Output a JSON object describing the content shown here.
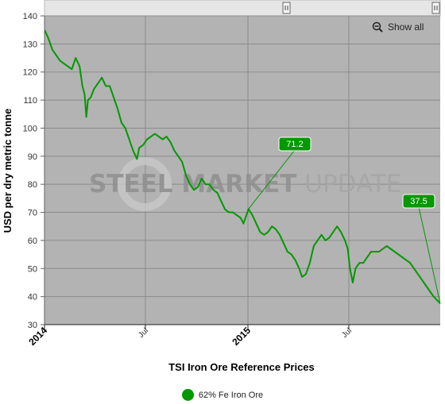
{
  "chart_data": {
    "type": "line",
    "title": "",
    "xlabel": "TSI Iron Ore Reference Prices",
    "ylabel": "USD per dry metric tonne",
    "ylim": [
      30,
      140
    ],
    "yticks": [
      30,
      40,
      50,
      60,
      70,
      80,
      90,
      100,
      110,
      120,
      130,
      140
    ],
    "xlim": [
      "2014-01-01",
      "2015-12-12"
    ],
    "xticks": [
      {
        "date": "2014-01-01",
        "label": "2014",
        "major": true
      },
      {
        "date": "2014-07-01",
        "label": "Jul",
        "major": false
      },
      {
        "date": "2015-01-01",
        "label": "2015",
        "major": true
      },
      {
        "date": "2015-07-01",
        "label": "Jul",
        "major": false
      }
    ],
    "grid": true,
    "legend_position": "bottom",
    "series": [
      {
        "name": "62% Fe Iron Ore",
        "color": "#009900",
        "points": [
          [
            "2014-01-01",
            135
          ],
          [
            "2014-01-08",
            132
          ],
          [
            "2014-01-15",
            128
          ],
          [
            "2014-01-22",
            126
          ],
          [
            "2014-01-29",
            124
          ],
          [
            "2014-02-05",
            123
          ],
          [
            "2014-02-12",
            122
          ],
          [
            "2014-02-19",
            121
          ],
          [
            "2014-02-26",
            125
          ],
          [
            "2014-03-05",
            122
          ],
          [
            "2014-03-10",
            115
          ],
          [
            "2014-03-14",
            112
          ],
          [
            "2014-03-17",
            104
          ],
          [
            "2014-03-20",
            110
          ],
          [
            "2014-03-25",
            111
          ],
          [
            "2014-03-31",
            114
          ],
          [
            "2014-04-07",
            116
          ],
          [
            "2014-04-14",
            118
          ],
          [
            "2014-04-21",
            115
          ],
          [
            "2014-04-28",
            115
          ],
          [
            "2014-05-05",
            111
          ],
          [
            "2014-05-12",
            107
          ],
          [
            "2014-05-19",
            102
          ],
          [
            "2014-05-26",
            100
          ],
          [
            "2014-06-02",
            96
          ],
          [
            "2014-06-09",
            92
          ],
          [
            "2014-06-16",
            89
          ],
          [
            "2014-06-20",
            93
          ],
          [
            "2014-06-27",
            94
          ],
          [
            "2014-07-04",
            96
          ],
          [
            "2014-07-11",
            97
          ],
          [
            "2014-07-18",
            98
          ],
          [
            "2014-07-25",
            97
          ],
          [
            "2014-08-01",
            96
          ],
          [
            "2014-08-08",
            97
          ],
          [
            "2014-08-15",
            95
          ],
          [
            "2014-08-22",
            92
          ],
          [
            "2014-08-29",
            90
          ],
          [
            "2014-09-05",
            88
          ],
          [
            "2014-09-12",
            83
          ],
          [
            "2014-09-19",
            80
          ],
          [
            "2014-09-26",
            78
          ],
          [
            "2014-10-03",
            79
          ],
          [
            "2014-10-10",
            82
          ],
          [
            "2014-10-17",
            80
          ],
          [
            "2014-10-24",
            80
          ],
          [
            "2014-10-31",
            78
          ],
          [
            "2014-11-07",
            77
          ],
          [
            "2014-11-14",
            74
          ],
          [
            "2014-11-21",
            71
          ],
          [
            "2014-11-28",
            70
          ],
          [
            "2014-12-05",
            70
          ],
          [
            "2014-12-12",
            69
          ],
          [
            "2014-12-19",
            68
          ],
          [
            "2014-12-24",
            66
          ],
          [
            "2015-01-02",
            71.2
          ],
          [
            "2015-01-09",
            69
          ],
          [
            "2015-01-16",
            66
          ],
          [
            "2015-01-23",
            63
          ],
          [
            "2015-01-30",
            62
          ],
          [
            "2015-02-06",
            63
          ],
          [
            "2015-02-13",
            65
          ],
          [
            "2015-02-20",
            64
          ],
          [
            "2015-02-27",
            62
          ],
          [
            "2015-03-06",
            59
          ],
          [
            "2015-03-13",
            56
          ],
          [
            "2015-03-20",
            55
          ],
          [
            "2015-03-27",
            53
          ],
          [
            "2015-04-03",
            50
          ],
          [
            "2015-04-08",
            47
          ],
          [
            "2015-04-15",
            48
          ],
          [
            "2015-04-22",
            52
          ],
          [
            "2015-04-29",
            58
          ],
          [
            "2015-05-06",
            60
          ],
          [
            "2015-05-13",
            62
          ],
          [
            "2015-05-20",
            60
          ],
          [
            "2015-05-27",
            61
          ],
          [
            "2015-06-03",
            63
          ],
          [
            "2015-06-10",
            65
          ],
          [
            "2015-06-17",
            63
          ],
          [
            "2015-06-24",
            60
          ],
          [
            "2015-06-29",
            57
          ],
          [
            "2015-07-03",
            50
          ],
          [
            "2015-07-08",
            45
          ],
          [
            "2015-07-13",
            50
          ],
          [
            "2015-07-20",
            52
          ],
          [
            "2015-07-27",
            52
          ],
          [
            "2015-08-03",
            54
          ],
          [
            "2015-08-10",
            56
          ],
          [
            "2015-08-17",
            56
          ],
          [
            "2015-08-24",
            56
          ],
          [
            "2015-08-31",
            57
          ],
          [
            "2015-09-07",
            58
          ],
          [
            "2015-09-14",
            57
          ],
          [
            "2015-09-21",
            56
          ],
          [
            "2015-09-28",
            55
          ],
          [
            "2015-10-05",
            54
          ],
          [
            "2015-10-12",
            53
          ],
          [
            "2015-10-19",
            52
          ],
          [
            "2015-10-26",
            50
          ],
          [
            "2015-11-02",
            48
          ],
          [
            "2015-11-09",
            46
          ],
          [
            "2015-11-16",
            44
          ],
          [
            "2015-11-23",
            42
          ],
          [
            "2015-11-30",
            40
          ],
          [
            "2015-12-05",
            39
          ],
          [
            "2015-12-12",
            37.5
          ]
        ]
      }
    ],
    "annotations": [
      {
        "date": "2015-01-02",
        "value": 71.2,
        "label": "71.2"
      },
      {
        "date": "2015-12-12",
        "value": 37.5,
        "label": "37.5"
      }
    ],
    "watermark": {
      "part1": "STEEL MARKET",
      "part2": " UPDATE"
    }
  },
  "ui": {
    "show_all_label": "Show all",
    "zoom_icon": "zoom-out-icon",
    "navigator_handle_icon": "grip-handle-icon"
  },
  "colors": {
    "plot_background": "#b3b3b3",
    "line": "#009900",
    "callout": "#009900"
  }
}
